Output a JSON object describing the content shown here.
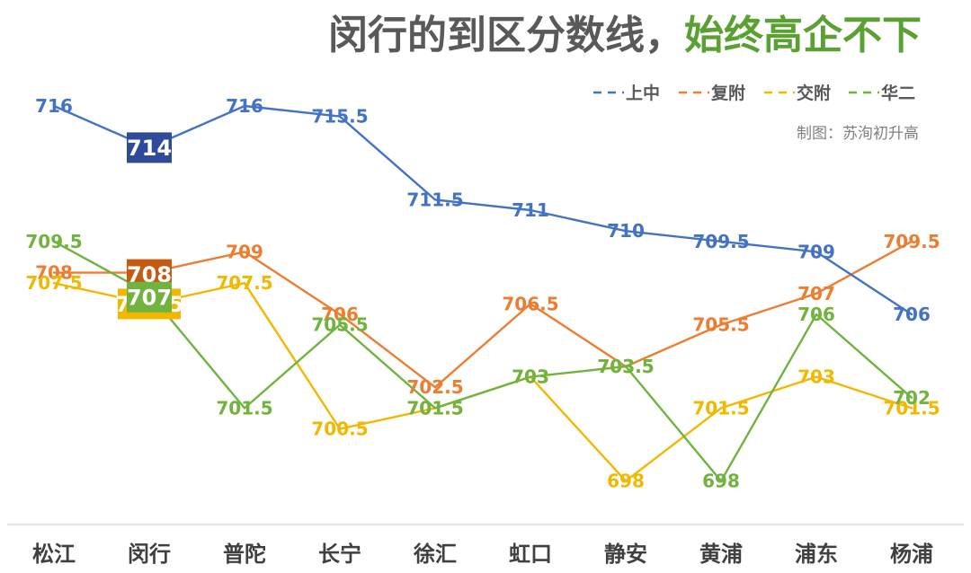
{
  "title": {
    "main": "闵行的到区分数线，",
    "highlight": "始终高企不下"
  },
  "credit": "制图：苏洵初升高",
  "colors": {
    "上中": "#4472c4",
    "复附": "#ed7d31",
    "交附": "#f2b800",
    "华二": "#70b33e",
    "box_上中": "#2e4b9a",
    "box_复附": "#c55a11",
    "box_交附": "#f2b800",
    "box_华二": "#70b33e",
    "title_highlight": "#5aa032",
    "title_main": "#595959"
  },
  "chart_data": {
    "type": "line",
    "categories": [
      "松江",
      "闵行",
      "普陀",
      "长宁",
      "徐汇",
      "虹口",
      "静安",
      "黄浦",
      "浦东",
      "杨浦"
    ],
    "series": [
      {
        "name": "上中",
        "values": [
          716,
          714,
          716,
          715.5,
          711.5,
          711,
          710,
          709.5,
          709,
          706
        ]
      },
      {
        "name": "复附",
        "values": [
          708,
          708,
          709,
          706,
          702.5,
          706.5,
          703.5,
          705.5,
          707,
          709.5
        ]
      },
      {
        "name": "交附",
        "values": [
          707.5,
          706.5,
          707.5,
          700.5,
          701.5,
          703,
          698,
          701.5,
          703,
          701.5
        ]
      },
      {
        "name": "华二",
        "values": [
          709.5,
          707,
          701.5,
          705.5,
          701.5,
          703,
          703.5,
          698,
          706,
          702
        ]
      }
    ],
    "highlight_category": "闵行",
    "legend_position": "top-right",
    "line_style": "solid",
    "legend_line_style": "dashed",
    "grid": false
  }
}
